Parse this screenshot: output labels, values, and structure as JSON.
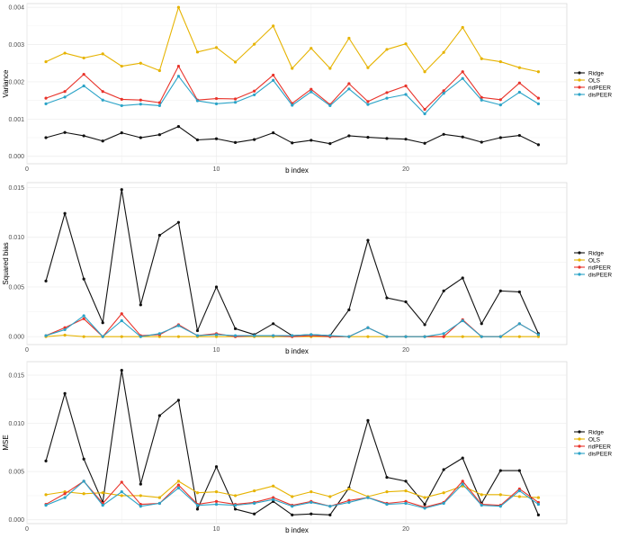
{
  "chart_data": [
    {
      "type": "line",
      "title": "",
      "xlabel": "b index",
      "ylabel": "Variance",
      "xlim": [
        0,
        28.5
      ],
      "ylim": [
        -0.0002,
        0.0041
      ],
      "xticks": [
        0,
        10,
        20
      ],
      "yticks": [
        0.0,
        0.001,
        0.002,
        0.003,
        0.004
      ],
      "ytick_labels": [
        "0.000",
        "0.001",
        "0.002",
        "0.003",
        "0.004"
      ],
      "grid": true,
      "legend_position": "right",
      "x": [
        1,
        2,
        3,
        4,
        5,
        6,
        7,
        8,
        9,
        10,
        11,
        12,
        13,
        14,
        15,
        16,
        17,
        18,
        19,
        20,
        21,
        22,
        23,
        24,
        25,
        26,
        27
      ],
      "series": [
        {
          "name": "Ridge",
          "color": "#111111",
          "values": [
            0.0005,
            0.00064,
            0.00055,
            0.00041,
            0.00063,
            0.0005,
            0.00058,
            0.0008,
            0.00044,
            0.00047,
            0.00037,
            0.00045,
            0.00063,
            0.00036,
            0.00043,
            0.00034,
            0.00055,
            0.00051,
            0.00048,
            0.00046,
            0.00035,
            0.00059,
            0.00052,
            0.00038,
            0.0005,
            0.00056,
            0.00031
          ]
        },
        {
          "name": "OLS",
          "color": "#e6b300",
          "values": [
            0.00254,
            0.00277,
            0.00264,
            0.00275,
            0.00242,
            0.0025,
            0.0023,
            0.004,
            0.0028,
            0.00292,
            0.00253,
            0.00301,
            0.0035,
            0.00236,
            0.0029,
            0.00236,
            0.00317,
            0.00238,
            0.00287,
            0.00302,
            0.00227,
            0.00279,
            0.00346,
            0.00262,
            0.00254,
            0.00238,
            0.00227
          ]
        },
        {
          "name": "ridPEER",
          "color": "#e8332a",
          "values": [
            0.00156,
            0.00174,
            0.0022,
            0.00174,
            0.00153,
            0.00151,
            0.00144,
            0.00242,
            0.00151,
            0.00155,
            0.00154,
            0.00175,
            0.00218,
            0.00142,
            0.0018,
            0.00139,
            0.00195,
            0.00147,
            0.00171,
            0.00189,
            0.00126,
            0.00176,
            0.00227,
            0.00158,
            0.00152,
            0.00197,
            0.00156
          ]
        },
        {
          "name": "disPEER",
          "color": "#2aa3c7",
          "values": [
            0.00141,
            0.00159,
            0.00189,
            0.00151,
            0.00136,
            0.0014,
            0.00136,
            0.00215,
            0.00149,
            0.00141,
            0.00145,
            0.00165,
            0.00204,
            0.00137,
            0.00173,
            0.00136,
            0.00181,
            0.00139,
            0.00156,
            0.00166,
            0.00114,
            0.00169,
            0.00209,
            0.00151,
            0.00138,
            0.00172,
            0.00141
          ]
        }
      ]
    },
    {
      "type": "line",
      "title": "",
      "xlabel": "b index",
      "ylabel": "Squared bias",
      "xlim": [
        0,
        28.5
      ],
      "ylim": [
        -0.0008,
        0.0155
      ],
      "xticks": [
        0,
        10,
        20
      ],
      "yticks": [
        0.0,
        0.005,
        0.01,
        0.015
      ],
      "ytick_labels": [
        "0.000",
        "0.005",
        "0.010",
        "0.015"
      ],
      "grid": true,
      "legend_position": "right",
      "x": [
        1,
        2,
        3,
        4,
        5,
        6,
        7,
        8,
        9,
        10,
        11,
        12,
        13,
        14,
        15,
        16,
        17,
        18,
        19,
        20,
        21,
        22,
        23,
        24,
        25,
        26,
        27
      ],
      "series": [
        {
          "name": "Ridge",
          "color": "#111111",
          "values": [
            0.0056,
            0.0124,
            0.0058,
            0.0014,
            0.0148,
            0.0032,
            0.0102,
            0.0115,
            0.0006,
            0.005,
            0.0008,
            0.0002,
            0.0013,
            0.0001,
            0.0002,
            0.0001,
            0.0027,
            0.0097,
            0.0039,
            0.0035,
            0.0012,
            0.0046,
            0.0059,
            0.0013,
            0.0046,
            0.0045,
            0.0003
          ]
        },
        {
          "name": "OLS",
          "color": "#e6b300",
          "values": [
            0.0,
            0.00015,
            0.0,
            0.0,
            0.0,
            0.0,
            0.0,
            0.0,
            0.0,
            0.0,
            0.0,
            0.0,
            0.0,
            0.0,
            0.0,
            0.0,
            0.0,
            0.0,
            0.0,
            0.0,
            0.0,
            0.0,
            0.0,
            0.0,
            0.0,
            0.0,
            0.0
          ]
        },
        {
          "name": "ridPEER",
          "color": "#e8332a",
          "values": [
            0.0001,
            0.0009,
            0.0018,
            0.0,
            0.0023,
            0.0001,
            0.0002,
            0.0012,
            0.0001,
            0.0003,
            0.0,
            0.0001,
            0.0001,
            0.0,
            0.0001,
            0.0,
            0.0,
            0.0009,
            0.0,
            0.0,
            0.0,
            0.0,
            0.0017,
            0.0,
            0.0,
            0.0013,
            0.0002
          ]
        },
        {
          "name": "disPEER",
          "color": "#2aa3c7",
          "values": [
            0.0001,
            0.0007,
            0.0021,
            0.0,
            0.0016,
            0.0,
            0.0003,
            0.0011,
            0.0001,
            0.0002,
            0.0001,
            0.0001,
            0.0001,
            0.0001,
            0.0002,
            0.0001,
            0.0,
            0.0009,
            0.0,
            0.0,
            0.0,
            0.0003,
            0.0016,
            0.0,
            0.0,
            0.0013,
            0.0002
          ]
        }
      ]
    },
    {
      "type": "line",
      "title": "",
      "xlabel": "b index",
      "ylabel": "MSE",
      "xlim": [
        0,
        28.5
      ],
      "ylim": [
        -0.0004,
        0.0164
      ],
      "xticks": [
        0,
        10,
        20
      ],
      "yticks": [
        0.0,
        0.005,
        0.01,
        0.015
      ],
      "ytick_labels": [
        "0.000",
        "0.005",
        "0.010",
        "0.015"
      ],
      "grid": true,
      "legend_position": "right",
      "x": [
        1,
        2,
        3,
        4,
        5,
        6,
        7,
        8,
        9,
        10,
        11,
        12,
        13,
        14,
        15,
        16,
        17,
        18,
        19,
        20,
        21,
        22,
        23,
        24,
        25,
        26,
        27
      ],
      "series": [
        {
          "name": "Ridge",
          "color": "#111111",
          "values": [
            0.0061,
            0.0131,
            0.0063,
            0.0018,
            0.0155,
            0.0037,
            0.0108,
            0.0124,
            0.0011,
            0.0055,
            0.0011,
            0.0006,
            0.0019,
            0.0005,
            0.0006,
            0.0005,
            0.0033,
            0.0103,
            0.0044,
            0.004,
            0.0016,
            0.0052,
            0.0064,
            0.0017,
            0.0051,
            0.0051,
            0.0005
          ]
        },
        {
          "name": "OLS",
          "color": "#e6b300",
          "values": [
            0.0026,
            0.0029,
            0.0027,
            0.0028,
            0.0025,
            0.0025,
            0.0023,
            0.004,
            0.0028,
            0.0029,
            0.0025,
            0.003,
            0.0035,
            0.0024,
            0.0029,
            0.0024,
            0.0032,
            0.0024,
            0.0029,
            0.003,
            0.0023,
            0.0028,
            0.0035,
            0.0026,
            0.0026,
            0.0024,
            0.0023
          ]
        },
        {
          "name": "ridPEER",
          "color": "#e8332a",
          "values": [
            0.0016,
            0.0027,
            0.004,
            0.0017,
            0.0039,
            0.0016,
            0.0017,
            0.0036,
            0.0016,
            0.0019,
            0.0016,
            0.0018,
            0.0023,
            0.0015,
            0.0019,
            0.0014,
            0.002,
            0.0023,
            0.0017,
            0.0019,
            0.0013,
            0.0018,
            0.004,
            0.0016,
            0.0015,
            0.0032,
            0.0018
          ]
        },
        {
          "name": "disPEER",
          "color": "#2aa3c7",
          "values": [
            0.0015,
            0.0023,
            0.004,
            0.0015,
            0.0029,
            0.0014,
            0.0017,
            0.0033,
            0.0015,
            0.0016,
            0.0015,
            0.0017,
            0.0021,
            0.0014,
            0.0018,
            0.0014,
            0.0018,
            0.0023,
            0.0016,
            0.0017,
            0.0012,
            0.0017,
            0.0037,
            0.0015,
            0.0014,
            0.003,
            0.0016
          ]
        }
      ]
    }
  ]
}
